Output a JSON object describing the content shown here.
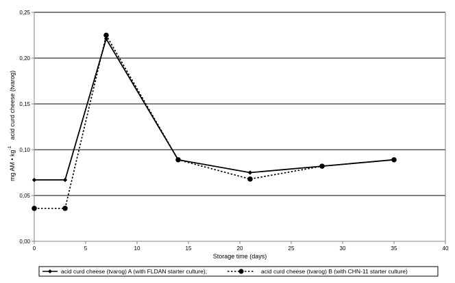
{
  "chart_data": {
    "type": "line",
    "title": "",
    "xlabel": "Storage time (days)",
    "ylabel_main": "mg AM • kg",
    "ylabel_superscript": "-1",
    "ylabel_tail": "acid curd cheese (tvarog)",
    "xlim": [
      0,
      40
    ],
    "ylim": [
      0,
      0.25
    ],
    "x_ticks": [
      0,
      5,
      10,
      15,
      20,
      25,
      30,
      35,
      40
    ],
    "x_tick_labels": [
      "0",
      "5",
      "10",
      "15",
      "20",
      "25",
      "30",
      "35",
      "40"
    ],
    "y_ticks": [
      0,
      0.05,
      0.1,
      0.15,
      0.2,
      0.25
    ],
    "y_tick_labels": [
      "0,00",
      "0,05",
      "0,10",
      "0,15",
      "0,20",
      "0,25"
    ],
    "grid": "horizontal",
    "legend_position": "bottom",
    "series": [
      {
        "name": "acid curd cheese (tvarog) A (with FLDAN starter culture);",
        "style": "solid",
        "marker": "diamond",
        "x": [
          0,
          3,
          7,
          14,
          21,
          28,
          35
        ],
        "values": [
          0.067,
          0.067,
          0.221,
          0.089,
          0.075,
          0.082,
          0.089
        ]
      },
      {
        "name": "acid curd cheese (tvarog) B (with CHN-11 starter culture)",
        "style": "dotted",
        "marker": "circle",
        "x": [
          0,
          3,
          7,
          14,
          21,
          28,
          35
        ],
        "values": [
          0.036,
          0.036,
          0.225,
          0.089,
          0.068,
          0.082,
          0.089
        ]
      }
    ]
  }
}
